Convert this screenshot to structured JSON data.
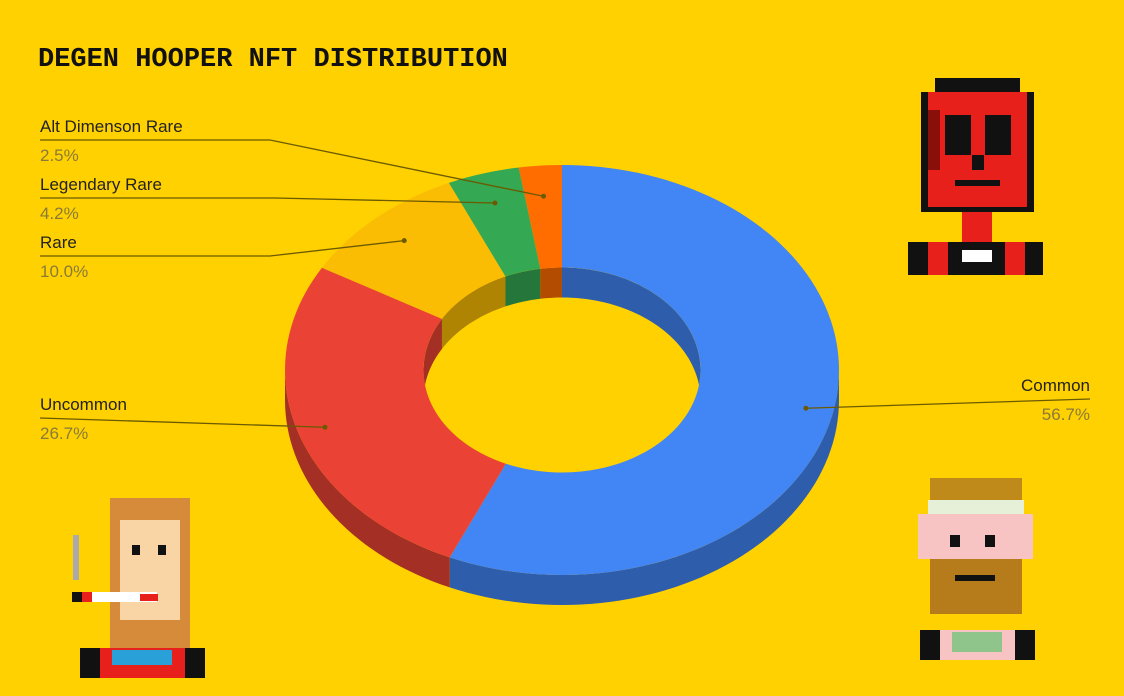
{
  "chart_data": {
    "type": "donut3d",
    "title": "DEGEN HOOPER NFT DISTRIBUTION",
    "categories": [
      "Common",
      "Uncommon",
      "Rare",
      "Legendary Rare",
      "Alt Dimenson Rare"
    ],
    "values": [
      56.7,
      26.7,
      10.0,
      4.2,
      2.5
    ],
    "value_labels": [
      "56.7%",
      "26.7%",
      "10.0%",
      "4.2%",
      "2.5%"
    ],
    "colors": [
      "#4285f4",
      "#ea4335",
      "#fbbc04",
      "#34a853",
      "#ff6d01"
    ]
  }
}
